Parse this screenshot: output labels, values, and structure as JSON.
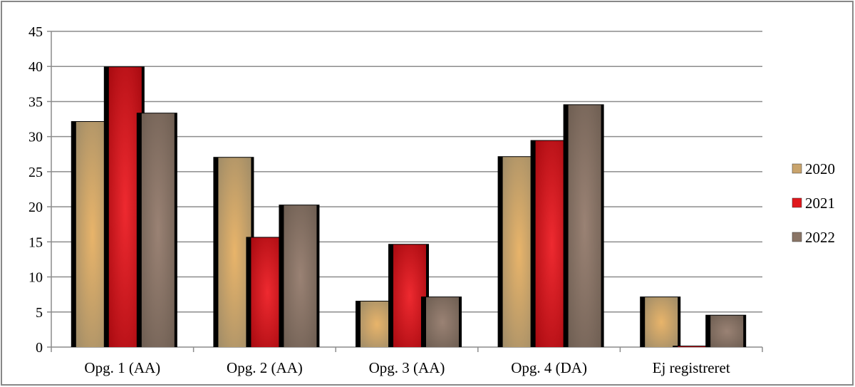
{
  "chart_data": {
    "type": "bar",
    "title": "",
    "xlabel": "",
    "ylabel": "",
    "categories": [
      "Opg. 1 (AA)",
      "Opg. 2 (AA)",
      "Opg. 3 (AA)",
      "Opg. 4 (DA)",
      "Ej registreret"
    ],
    "series": [
      {
        "name": "2020",
        "values": [
          32.2,
          27.1,
          6.6,
          27.2,
          7.2
        ],
        "color": "#c9a46c"
      },
      {
        "name": "2021",
        "values": [
          40.0,
          15.7,
          14.7,
          29.5,
          0.2
        ],
        "color": "#e0181c"
      },
      {
        "name": "2022",
        "values": [
          33.4,
          20.3,
          7.2,
          34.6,
          4.6
        ],
        "color": "#8a7566"
      }
    ],
    "ylim": [
      0,
      45
    ],
    "yticks": [
      0,
      5,
      10,
      15,
      20,
      25,
      30,
      35,
      40,
      45
    ],
    "grid": true,
    "legend_position": "right"
  }
}
